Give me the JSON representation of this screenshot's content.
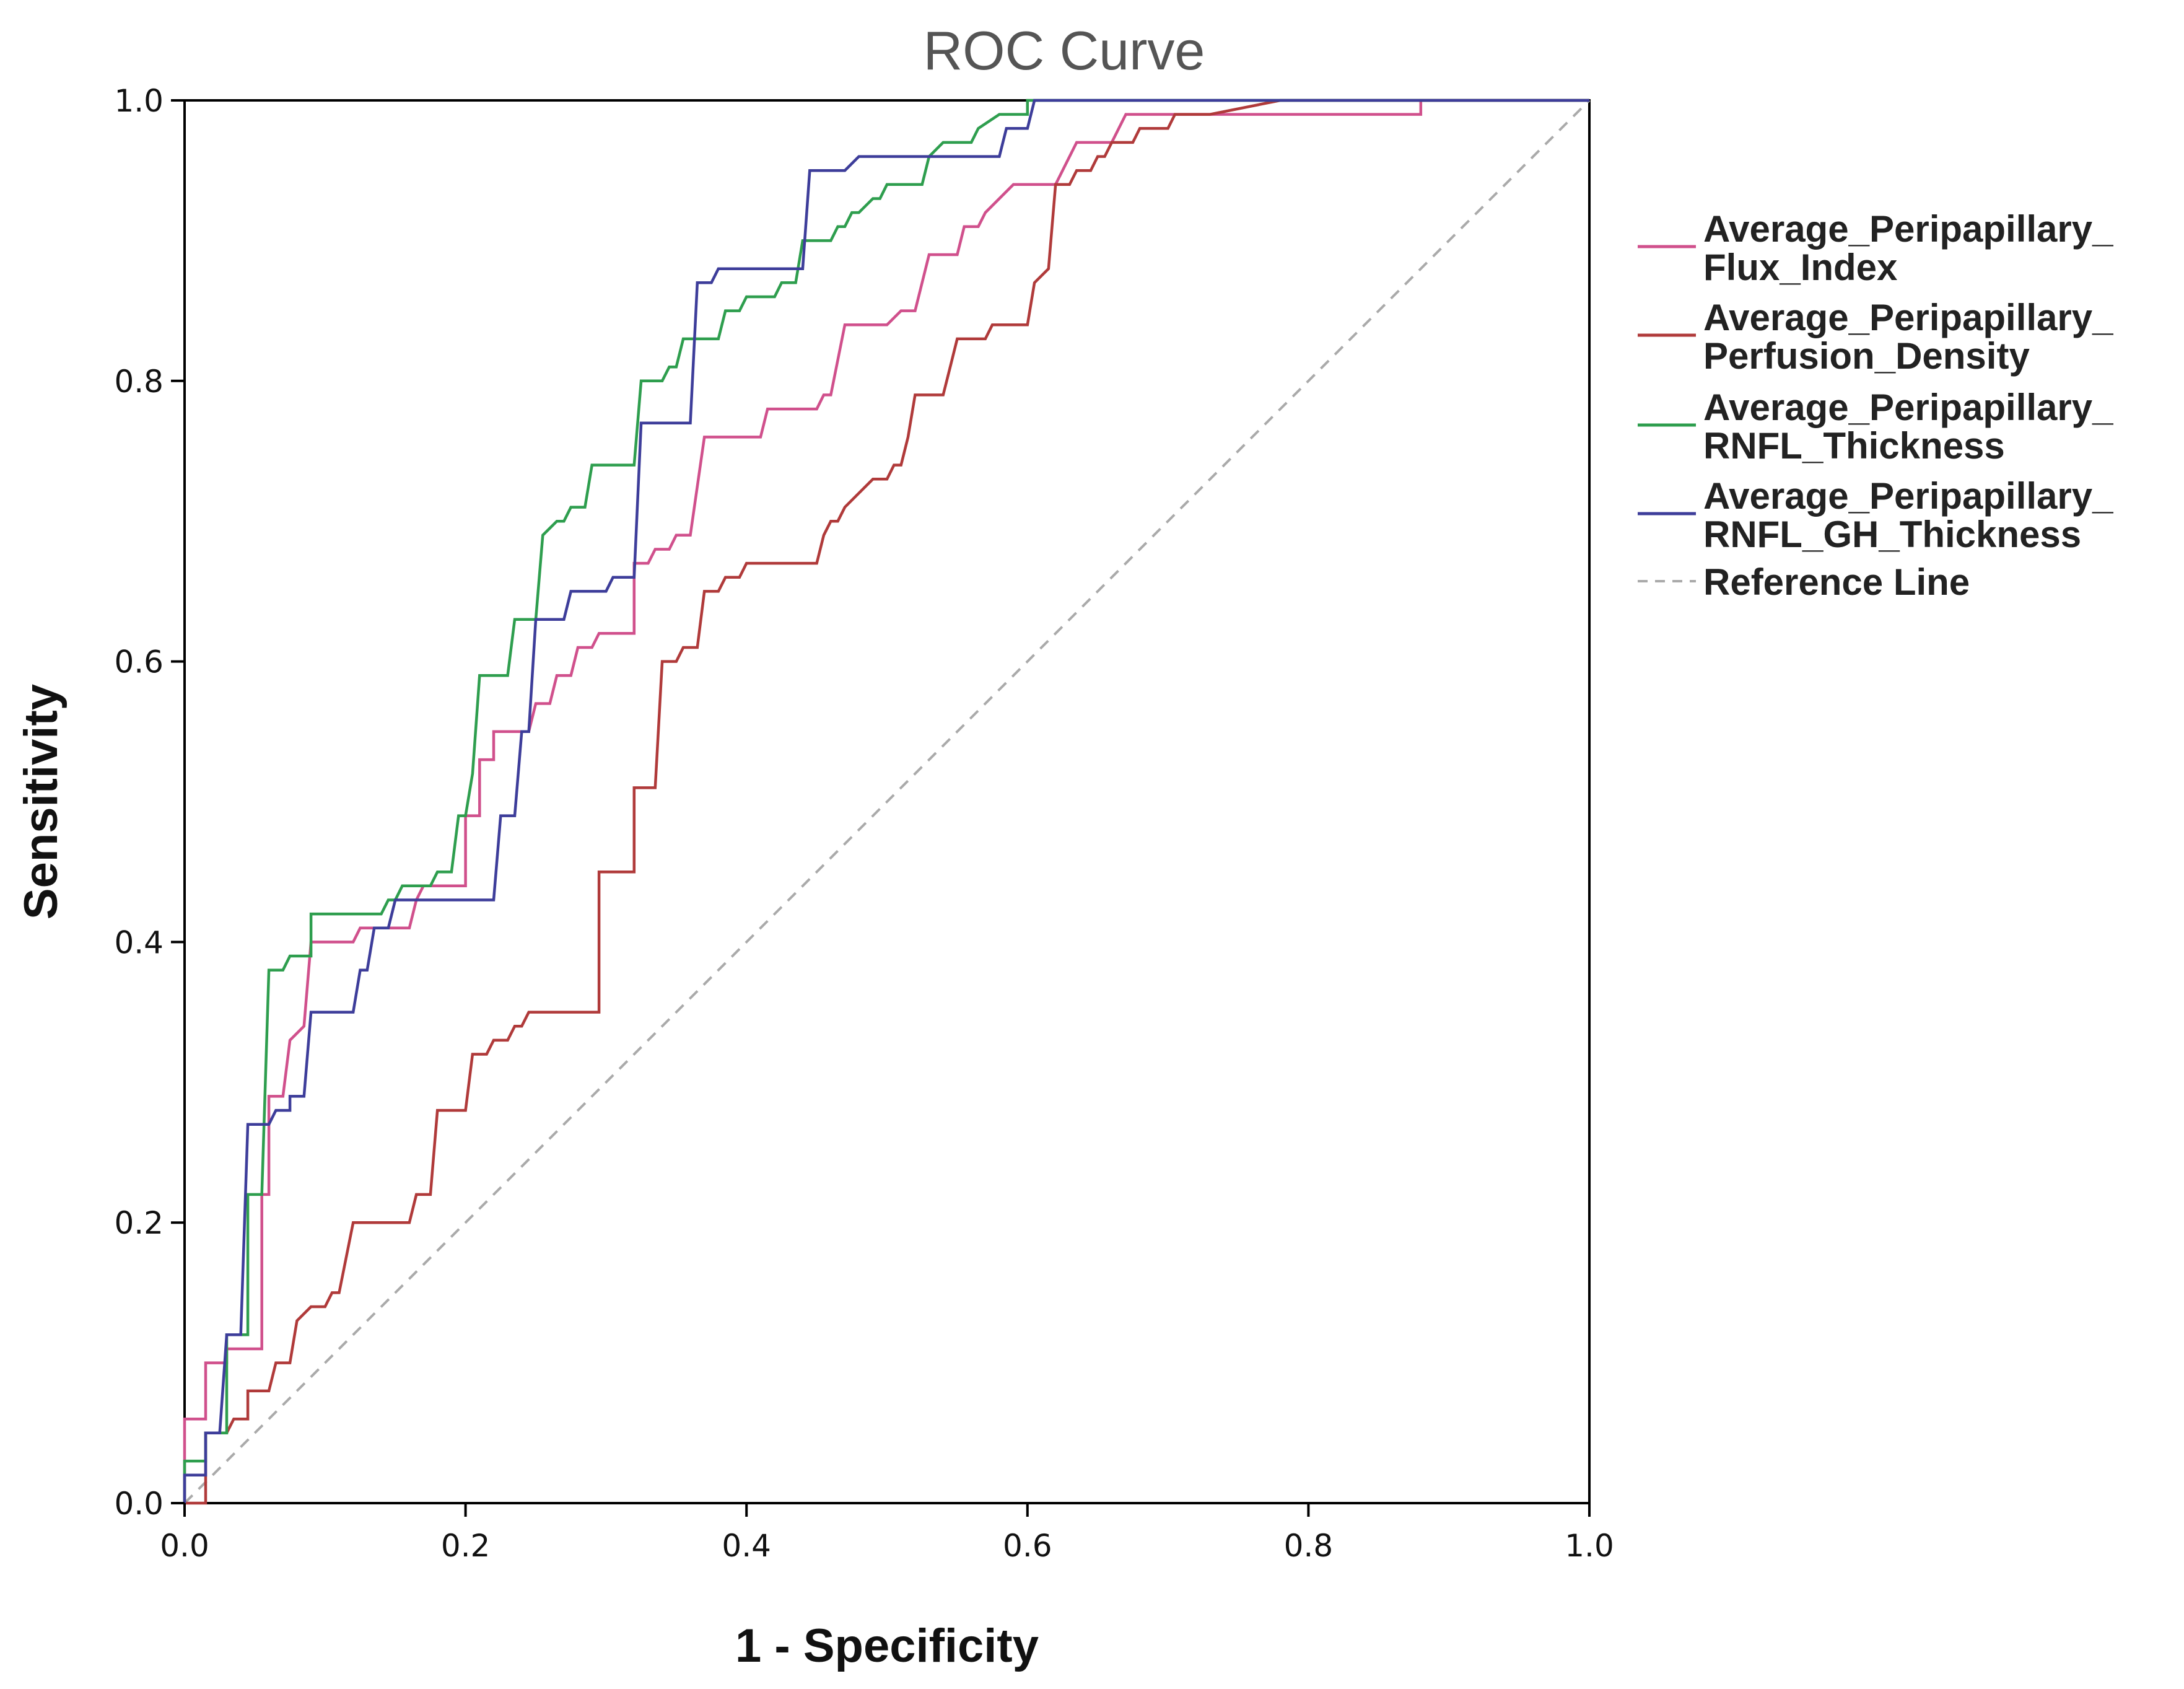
{
  "chart_data": {
    "type": "line",
    "title": "ROC Curve",
    "xlabel": "1 - Specificity",
    "ylabel": "Sensitivity",
    "xlim": [
      0,
      1
    ],
    "ylim": [
      0,
      1
    ],
    "xticks": [
      "0.0",
      "0.2",
      "0.4",
      "0.6",
      "0.8",
      "1.0"
    ],
    "yticks": [
      "0.0",
      "0.2",
      "0.4",
      "0.6",
      "0.8",
      "1.0"
    ],
    "grid": false,
    "legend_position": "right",
    "series": [
      {
        "name_line1": "Average_Peripapillary_",
        "name_line2": "Flux_Index",
        "color": "#d0508c",
        "style": "solid",
        "points": [
          [
            0,
            0
          ],
          [
            0,
            0.06
          ],
          [
            0.015,
            0.06
          ],
          [
            0.015,
            0.1
          ],
          [
            0.03,
            0.1
          ],
          [
            0.03,
            0.11
          ],
          [
            0.055,
            0.11
          ],
          [
            0.055,
            0.22
          ],
          [
            0.06,
            0.22
          ],
          [
            0.06,
            0.29
          ],
          [
            0.07,
            0.29
          ],
          [
            0.075,
            0.33
          ],
          [
            0.085,
            0.34
          ],
          [
            0.09,
            0.4
          ],
          [
            0.12,
            0.4
          ],
          [
            0.125,
            0.41
          ],
          [
            0.16,
            0.41
          ],
          [
            0.165,
            0.43
          ],
          [
            0.17,
            0.44
          ],
          [
            0.2,
            0.44
          ],
          [
            0.2,
            0.49
          ],
          [
            0.21,
            0.49
          ],
          [
            0.21,
            0.53
          ],
          [
            0.22,
            0.53
          ],
          [
            0.22,
            0.55
          ],
          [
            0.245,
            0.55
          ],
          [
            0.25,
            0.57
          ],
          [
            0.26,
            0.57
          ],
          [
            0.265,
            0.59
          ],
          [
            0.275,
            0.59
          ],
          [
            0.28,
            0.61
          ],
          [
            0.29,
            0.61
          ],
          [
            0.295,
            0.62
          ],
          [
            0.32,
            0.62
          ],
          [
            0.32,
            0.67
          ],
          [
            0.33,
            0.67
          ],
          [
            0.335,
            0.68
          ],
          [
            0.345,
            0.68
          ],
          [
            0.35,
            0.69
          ],
          [
            0.36,
            0.69
          ],
          [
            0.37,
            0.76
          ],
          [
            0.41,
            0.76
          ],
          [
            0.415,
            0.78
          ],
          [
            0.45,
            0.78
          ],
          [
            0.455,
            0.79
          ],
          [
            0.46,
            0.79
          ],
          [
            0.47,
            0.84
          ],
          [
            0.5,
            0.84
          ],
          [
            0.51,
            0.85
          ],
          [
            0.52,
            0.85
          ],
          [
            0.53,
            0.89
          ],
          [
            0.55,
            0.89
          ],
          [
            0.555,
            0.91
          ],
          [
            0.565,
            0.91
          ],
          [
            0.57,
            0.92
          ],
          [
            0.58,
            0.93
          ],
          [
            0.59,
            0.94
          ],
          [
            0.62,
            0.94
          ],
          [
            0.63,
            0.96
          ],
          [
            0.635,
            0.97
          ],
          [
            0.66,
            0.97
          ],
          [
            0.67,
            0.99
          ],
          [
            0.88,
            0.99
          ],
          [
            0.88,
            1.0
          ],
          [
            1.0,
            1.0
          ]
        ]
      },
      {
        "name_line1": "Average_Peripapillary_",
        "name_line2": "Perfusion_Density",
        "color": "#b03a3a",
        "style": "solid",
        "points": [
          [
            0,
            0
          ],
          [
            0.015,
            0
          ],
          [
            0.015,
            0.05
          ],
          [
            0.03,
            0.05
          ],
          [
            0.035,
            0.06
          ],
          [
            0.045,
            0.06
          ],
          [
            0.045,
            0.08
          ],
          [
            0.06,
            0.08
          ],
          [
            0.065,
            0.1
          ],
          [
            0.075,
            0.1
          ],
          [
            0.08,
            0.13
          ],
          [
            0.09,
            0.14
          ],
          [
            0.1,
            0.14
          ],
          [
            0.105,
            0.15
          ],
          [
            0.11,
            0.15
          ],
          [
            0.12,
            0.2
          ],
          [
            0.16,
            0.2
          ],
          [
            0.165,
            0.22
          ],
          [
            0.175,
            0.22
          ],
          [
            0.18,
            0.28
          ],
          [
            0.2,
            0.28
          ],
          [
            0.205,
            0.32
          ],
          [
            0.215,
            0.32
          ],
          [
            0.22,
            0.33
          ],
          [
            0.23,
            0.33
          ],
          [
            0.235,
            0.34
          ],
          [
            0.24,
            0.34
          ],
          [
            0.245,
            0.35
          ],
          [
            0.295,
            0.35
          ],
          [
            0.295,
            0.45
          ],
          [
            0.32,
            0.45
          ],
          [
            0.32,
            0.51
          ],
          [
            0.335,
            0.51
          ],
          [
            0.34,
            0.6
          ],
          [
            0.35,
            0.6
          ],
          [
            0.355,
            0.61
          ],
          [
            0.365,
            0.61
          ],
          [
            0.37,
            0.65
          ],
          [
            0.38,
            0.65
          ],
          [
            0.385,
            0.66
          ],
          [
            0.395,
            0.66
          ],
          [
            0.4,
            0.67
          ],
          [
            0.45,
            0.67
          ],
          [
            0.455,
            0.69
          ],
          [
            0.46,
            0.7
          ],
          [
            0.465,
            0.7
          ],
          [
            0.47,
            0.71
          ],
          [
            0.48,
            0.72
          ],
          [
            0.49,
            0.73
          ],
          [
            0.5,
            0.73
          ],
          [
            0.505,
            0.74
          ],
          [
            0.51,
            0.74
          ],
          [
            0.515,
            0.76
          ],
          [
            0.52,
            0.79
          ],
          [
            0.54,
            0.79
          ],
          [
            0.545,
            0.81
          ],
          [
            0.55,
            0.83
          ],
          [
            0.57,
            0.83
          ],
          [
            0.575,
            0.84
          ],
          [
            0.6,
            0.84
          ],
          [
            0.605,
            0.87
          ],
          [
            0.615,
            0.88
          ],
          [
            0.62,
            0.94
          ],
          [
            0.63,
            0.94
          ],
          [
            0.635,
            0.95
          ],
          [
            0.645,
            0.95
          ],
          [
            0.65,
            0.96
          ],
          [
            0.655,
            0.96
          ],
          [
            0.66,
            0.97
          ],
          [
            0.67,
            0.97
          ],
          [
            0.675,
            0.97
          ],
          [
            0.68,
            0.98
          ],
          [
            0.7,
            0.98
          ],
          [
            0.705,
            0.99
          ],
          [
            0.73,
            0.99
          ],
          [
            0.78,
            1.0
          ],
          [
            1.0,
            1.0
          ]
        ]
      },
      {
        "name_line1": "Average_Peripapillary_",
        "name_line2": "RNFL_Thickness",
        "color": "#2e9e4e",
        "style": "solid",
        "points": [
          [
            0,
            0
          ],
          [
            0,
            0.03
          ],
          [
            0.015,
            0.03
          ],
          [
            0.015,
            0.05
          ],
          [
            0.03,
            0.05
          ],
          [
            0.03,
            0.12
          ],
          [
            0.045,
            0.12
          ],
          [
            0.045,
            0.22
          ],
          [
            0.055,
            0.22
          ],
          [
            0.06,
            0.38
          ],
          [
            0.07,
            0.38
          ],
          [
            0.075,
            0.39
          ],
          [
            0.09,
            0.39
          ],
          [
            0.09,
            0.42
          ],
          [
            0.14,
            0.42
          ],
          [
            0.145,
            0.43
          ],
          [
            0.15,
            0.43
          ],
          [
            0.155,
            0.44
          ],
          [
            0.175,
            0.44
          ],
          [
            0.18,
            0.45
          ],
          [
            0.19,
            0.45
          ],
          [
            0.195,
            0.49
          ],
          [
            0.2,
            0.49
          ],
          [
            0.205,
            0.52
          ],
          [
            0.21,
            0.59
          ],
          [
            0.23,
            0.59
          ],
          [
            0.235,
            0.63
          ],
          [
            0.25,
            0.63
          ],
          [
            0.255,
            0.69
          ],
          [
            0.265,
            0.7
          ],
          [
            0.27,
            0.7
          ],
          [
            0.275,
            0.71
          ],
          [
            0.285,
            0.71
          ],
          [
            0.29,
            0.74
          ],
          [
            0.32,
            0.74
          ],
          [
            0.325,
            0.8
          ],
          [
            0.34,
            0.8
          ],
          [
            0.345,
            0.81
          ],
          [
            0.35,
            0.81
          ],
          [
            0.355,
            0.83
          ],
          [
            0.38,
            0.83
          ],
          [
            0.385,
            0.85
          ],
          [
            0.395,
            0.85
          ],
          [
            0.4,
            0.86
          ],
          [
            0.42,
            0.86
          ],
          [
            0.425,
            0.87
          ],
          [
            0.435,
            0.87
          ],
          [
            0.44,
            0.9
          ],
          [
            0.46,
            0.9
          ],
          [
            0.465,
            0.91
          ],
          [
            0.47,
            0.91
          ],
          [
            0.475,
            0.92
          ],
          [
            0.48,
            0.92
          ],
          [
            0.49,
            0.93
          ],
          [
            0.495,
            0.93
          ],
          [
            0.5,
            0.94
          ],
          [
            0.525,
            0.94
          ],
          [
            0.53,
            0.96
          ],
          [
            0.54,
            0.97
          ],
          [
            0.56,
            0.97
          ],
          [
            0.565,
            0.98
          ],
          [
            0.58,
            0.99
          ],
          [
            0.6,
            0.99
          ],
          [
            0.6,
            1.0
          ],
          [
            1.0,
            1.0
          ]
        ]
      },
      {
        "name_line1": "Average_Peripapillary_",
        "name_line2": "RNFL_GH_Thickness",
        "color": "#3d3d9a",
        "style": "solid",
        "points": [
          [
            0,
            0
          ],
          [
            0,
            0.02
          ],
          [
            0.015,
            0.02
          ],
          [
            0.015,
            0.05
          ],
          [
            0.02,
            0.05
          ],
          [
            0.025,
            0.05
          ],
          [
            0.03,
            0.12
          ],
          [
            0.04,
            0.12
          ],
          [
            0.045,
            0.27
          ],
          [
            0.06,
            0.27
          ],
          [
            0.065,
            0.28
          ],
          [
            0.075,
            0.28
          ],
          [
            0.075,
            0.29
          ],
          [
            0.085,
            0.29
          ],
          [
            0.09,
            0.35
          ],
          [
            0.12,
            0.35
          ],
          [
            0.125,
            0.38
          ],
          [
            0.13,
            0.38
          ],
          [
            0.135,
            0.41
          ],
          [
            0.145,
            0.41
          ],
          [
            0.15,
            0.43
          ],
          [
            0.22,
            0.43
          ],
          [
            0.225,
            0.49
          ],
          [
            0.235,
            0.49
          ],
          [
            0.24,
            0.55
          ],
          [
            0.245,
            0.55
          ],
          [
            0.25,
            0.63
          ],
          [
            0.27,
            0.63
          ],
          [
            0.275,
            0.65
          ],
          [
            0.3,
            0.65
          ],
          [
            0.305,
            0.66
          ],
          [
            0.32,
            0.66
          ],
          [
            0.325,
            0.77
          ],
          [
            0.36,
            0.77
          ],
          [
            0.365,
            0.87
          ],
          [
            0.375,
            0.87
          ],
          [
            0.38,
            0.88
          ],
          [
            0.44,
            0.88
          ],
          [
            0.445,
            0.95
          ],
          [
            0.47,
            0.95
          ],
          [
            0.48,
            0.96
          ],
          [
            0.58,
            0.96
          ],
          [
            0.585,
            0.98
          ],
          [
            0.6,
            0.98
          ],
          [
            0.605,
            1.0
          ],
          [
            1.0,
            1.0
          ]
        ]
      }
    ],
    "reference_line": {
      "name": "Reference Line",
      "color": "#aaaaaa",
      "style": "dashed",
      "points": [
        [
          0,
          0
        ],
        [
          1,
          1
        ]
      ]
    }
  }
}
